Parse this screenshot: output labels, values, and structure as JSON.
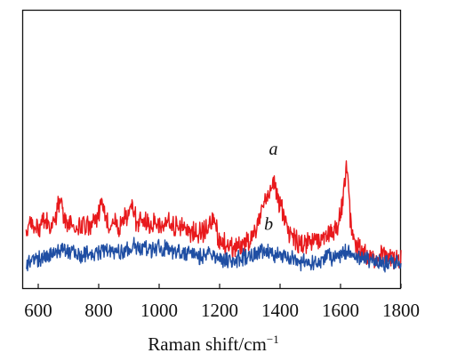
{
  "chart_data": {
    "type": "line",
    "title": "",
    "xlabel": "Raman shift/cm",
    "xlabel_superscript": "−1",
    "ylabel": "",
    "xlim": [
      550,
      1800
    ],
    "ylim": [
      0,
      100
    ],
    "x_ticks": [
      600,
      800,
      1000,
      1200,
      1400,
      1600,
      1800
    ],
    "x_tick_labels": [
      "600",
      "800",
      "1000",
      "1200",
      "1400",
      "1600",
      "1800"
    ],
    "grid": false,
    "legend": "none",
    "series": [
      {
        "name": "a",
        "color": "#e8191c",
        "x": [
          560,
          580,
          600,
          620,
          640,
          660,
          672,
          690,
          710,
          730,
          750,
          770,
          790,
          808,
          830,
          850,
          870,
          890,
          910,
          930,
          950,
          970,
          990,
          1010,
          1030,
          1050,
          1070,
          1090,
          1110,
          1130,
          1150,
          1165,
          1178,
          1195,
          1215,
          1235,
          1255,
          1275,
          1295,
          1315,
          1335,
          1350,
          1362,
          1372,
          1382,
          1395,
          1410,
          1425,
          1440,
          1460,
          1480,
          1500,
          1520,
          1540,
          1560,
          1580,
          1595,
          1605,
          1612,
          1620,
          1626,
          1632,
          1640,
          1655,
          1670,
          1690,
          1710,
          1730,
          1750,
          1770,
          1790,
          1800
        ],
        "y": [
          20,
          23,
          21,
          24,
          22,
          25,
          33,
          24,
          22,
          21,
          23,
          22,
          24,
          30,
          23,
          24,
          22,
          26,
          29,
          23,
          25,
          22,
          24,
          21,
          25,
          22,
          23,
          21,
          20,
          19,
          21,
          22,
          27,
          18,
          16,
          15,
          14,
          16,
          17,
          20,
          25,
          30,
          34,
          38,
          37,
          32,
          27,
          22,
          18,
          16,
          15,
          17,
          18,
          17,
          19,
          21,
          24,
          29,
          36,
          44,
          38,
          25,
          18,
          15,
          13,
          12,
          12,
          11,
          12,
          11,
          10,
          10
        ]
      },
      {
        "name": "b",
        "color": "#1f4ea3",
        "x": [
          560,
          580,
          600,
          620,
          640,
          660,
          680,
          700,
          720,
          740,
          760,
          780,
          800,
          820,
          840,
          860,
          880,
          900,
          920,
          940,
          960,
          980,
          1000,
          1020,
          1040,
          1060,
          1080,
          1100,
          1120,
          1140,
          1160,
          1180,
          1200,
          1220,
          1240,
          1260,
          1280,
          1300,
          1320,
          1340,
          1360,
          1380,
          1400,
          1420,
          1440,
          1460,
          1480,
          1500,
          1520,
          1540,
          1560,
          1580,
          1600,
          1620,
          1640,
          1660,
          1680,
          1700,
          1720,
          1740,
          1760,
          1780,
          1800
        ],
        "y": [
          9,
          10,
          10,
          11,
          12,
          13,
          15,
          14,
          13,
          12,
          13,
          12,
          13,
          14,
          14,
          13,
          13,
          14,
          15,
          14,
          15,
          14,
          15,
          14,
          14,
          13,
          12,
          13,
          12,
          11,
          12,
          11,
          11,
          10,
          10,
          10,
          11,
          12,
          13,
          13,
          13,
          12,
          12,
          11,
          11,
          10,
          9,
          9,
          9,
          10,
          11,
          11,
          12,
          13,
          12,
          11,
          11,
          10,
          10,
          9,
          9,
          9,
          9
        ]
      }
    ],
    "annotations": [
      {
        "text": "a",
        "x": 1378,
        "y": 48
      },
      {
        "text": "b",
        "x": 1362,
        "y": 21
      }
    ]
  }
}
